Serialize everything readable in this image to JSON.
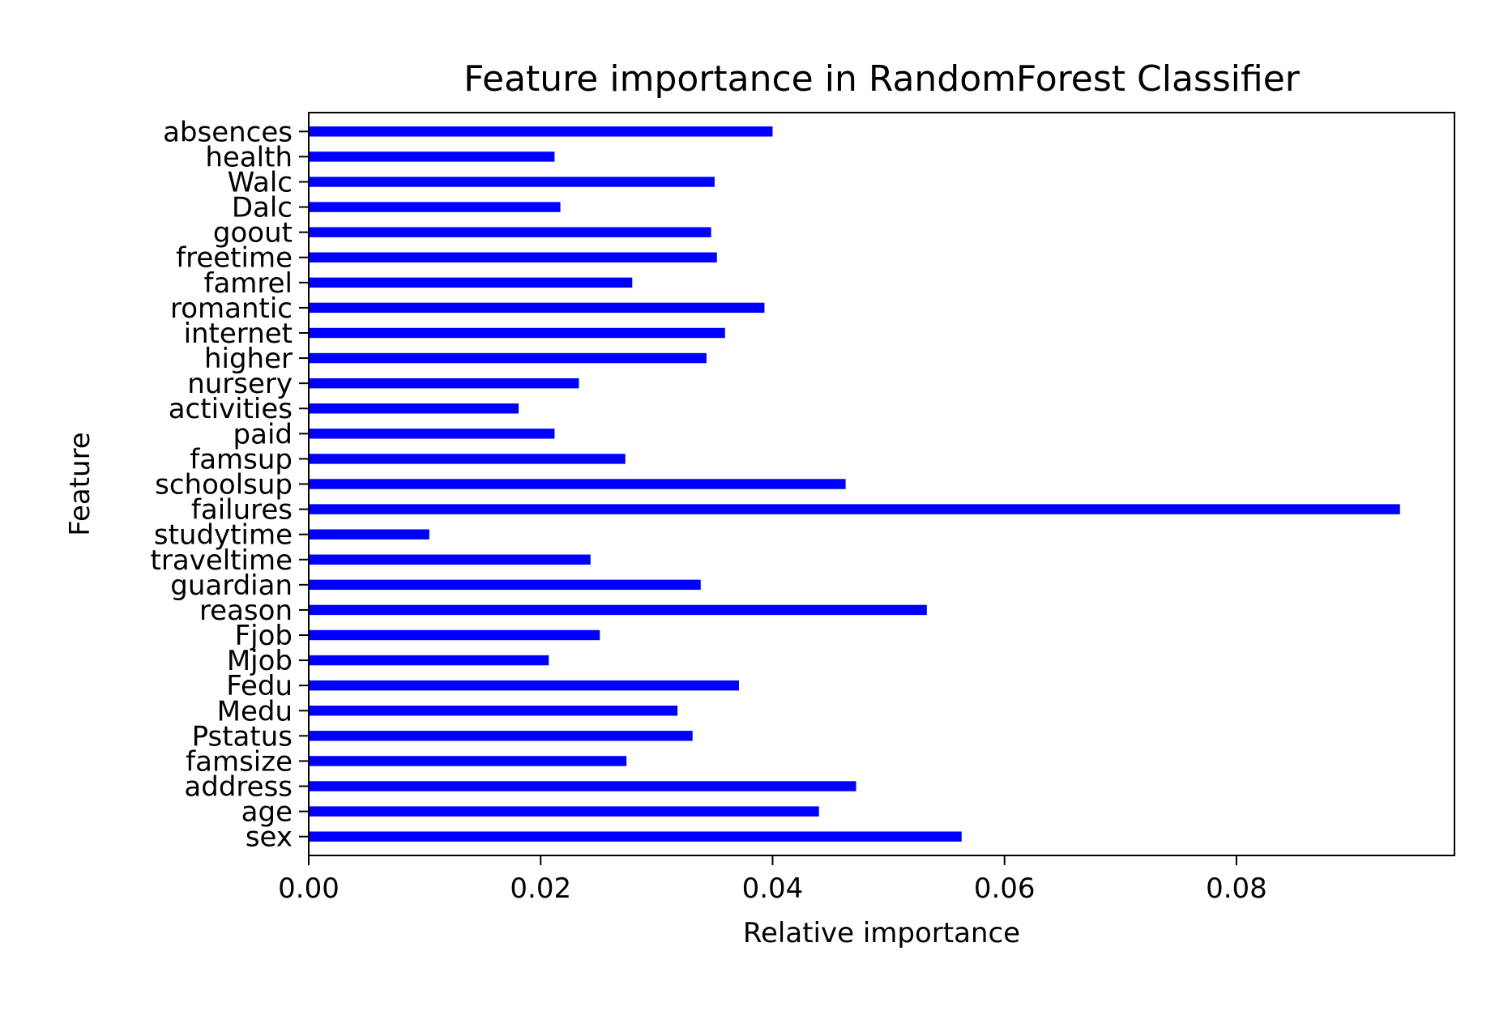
{
  "chart_data": {
    "type": "bar",
    "orientation": "horizontal",
    "title": "Feature importance in RandomForest Classifier",
    "xlabel": "Relative importance",
    "ylabel": "Feature",
    "categories": [
      "sex",
      "age",
      "address",
      "famsize",
      "Pstatus",
      "Medu",
      "Fedu",
      "Mjob",
      "Fjob",
      "reason",
      "guardian",
      "traveltime",
      "studytime",
      "failures",
      "schoolsup",
      "famsup",
      "paid",
      "activities",
      "nursery",
      "higher",
      "internet",
      "romantic",
      "famrel",
      "freetime",
      "goout",
      "Dalc",
      "Walc",
      "health",
      "absences"
    ],
    "values": [
      0.0563,
      0.044,
      0.0472,
      0.0274,
      0.0331,
      0.0318,
      0.0371,
      0.0207,
      0.0251,
      0.0533,
      0.0338,
      0.0243,
      0.0104,
      0.0941,
      0.0463,
      0.0273,
      0.0212,
      0.0181,
      0.0233,
      0.0343,
      0.0359,
      0.0393,
      0.0279,
      0.0352,
      0.0347,
      0.0217,
      0.035,
      0.0212,
      0.04
    ],
    "xlim": [
      0,
      0.0988
    ],
    "xticks": [
      0.0,
      0.02,
      0.04,
      0.06,
      0.08
    ],
    "xtick_labels": [
      "0.00",
      "0.02",
      "0.04",
      "0.06",
      "0.08"
    ],
    "bar_color": "#0000ff",
    "grid": false,
    "legend": "none"
  }
}
